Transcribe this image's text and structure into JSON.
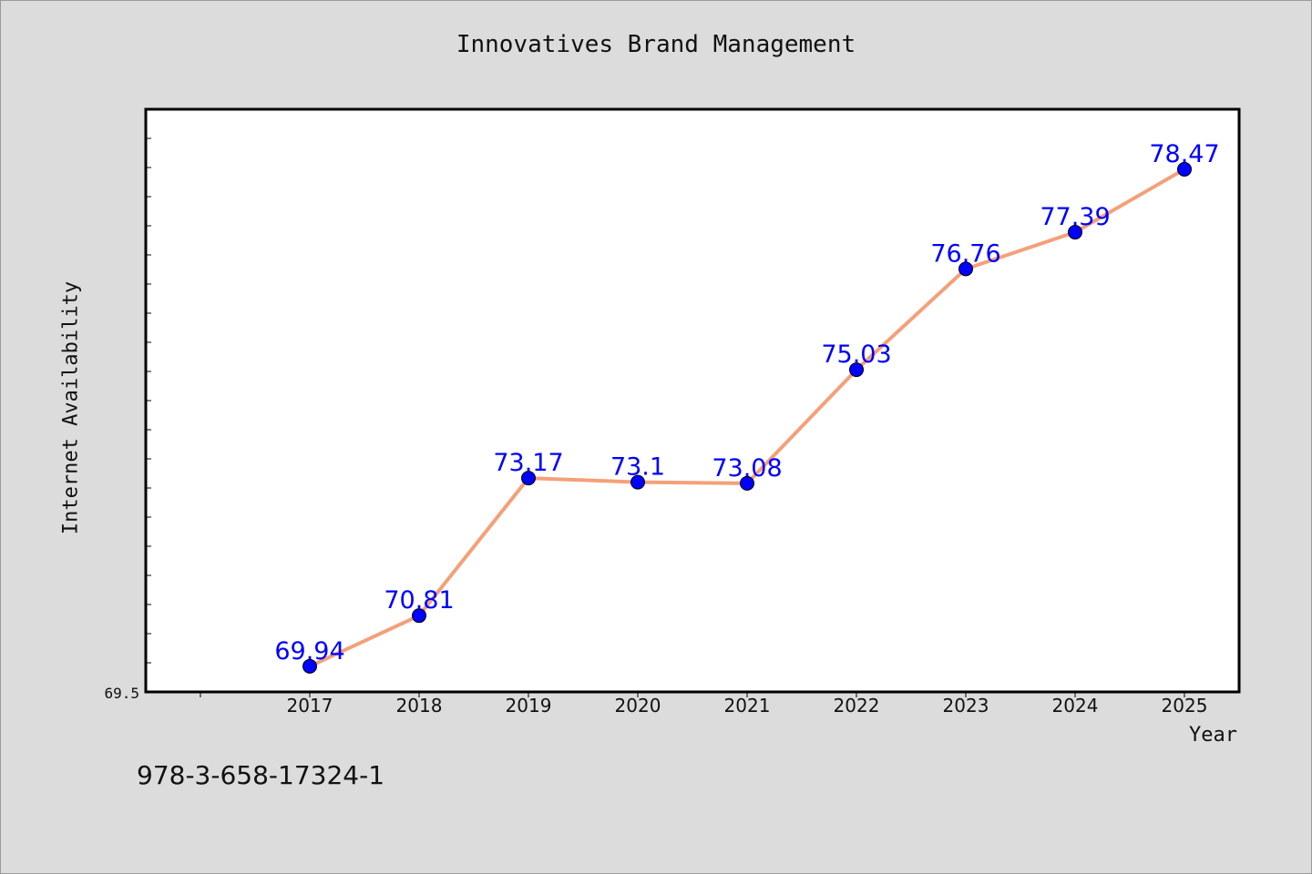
{
  "chart_data": {
    "type": "line",
    "title": "Innovatives Brand Management",
    "xlabel": "Year",
    "ylabel": "Internet Availability",
    "x": [
      "2017",
      "2018",
      "2019",
      "2020",
      "2021",
      "2022",
      "2023",
      "2024",
      "2025"
    ],
    "series": [
      {
        "values": [
          69.94,
          70.81,
          73.17,
          73.1,
          73.08,
          75.03,
          76.76,
          77.39,
          78.47
        ],
        "labels": [
          "69.94",
          "70.81",
          "73.17",
          "73.1",
          "73.08",
          "75.03",
          "76.76",
          "77.39",
          "78.47"
        ]
      }
    ],
    "y_tick_label": "69.5",
    "ylim": [
      69.5,
      79.5
    ],
    "grid": false,
    "line_color": "#f4a07a",
    "marker_color": "#0000ff",
    "label_color": "#0000ff"
  },
  "footer": {
    "isbn": "978-3-658-17324-1"
  }
}
